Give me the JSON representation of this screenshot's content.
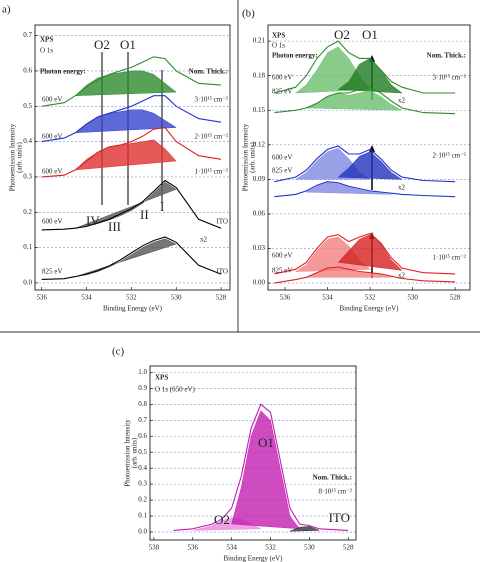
{
  "chart_data": [
    {
      "type": "line",
      "panel": "a)",
      "xlabel": "Binding Energy (eV)",
      "ylabel": [
        "Photoemission Intensity",
        "(arb. units)"
      ],
      "xlim": [
        536.3,
        527.6
      ],
      "xticks": [
        536,
        534,
        532,
        530,
        528
      ],
      "ylim": [
        -0.02,
        0.73
      ],
      "yticks": [
        {
          "value": 0,
          "label": "0.0"
        },
        0.1,
        0.2,
        0.3,
        0.4,
        0.5,
        0.6,
        0.7
      ],
      "grid": true,
      "x": [
        536,
        535,
        534.5,
        534,
        533.5,
        533,
        532.5,
        532,
        531.5,
        531,
        530.5,
        530,
        529,
        528
      ],
      "series": [
        {
          "kind": "area",
          "color": "#2e8b2e",
          "values": [
            null,
            null,
            0.53,
            0.56,
            0.58,
            0.59,
            0.595,
            0.6,
            0.6,
            0.59,
            0.565,
            0.54,
            null,
            null
          ]
        },
        {
          "kind": "line",
          "color": "#2e8b2e",
          "values": [
            0.5,
            0.51,
            0.53,
            0.555,
            0.575,
            0.59,
            0.6,
            0.61,
            0.625,
            0.64,
            0.635,
            0.6,
            0.565,
            0.56
          ]
        },
        {
          "kind": "area",
          "color": "#3344cc",
          "values": [
            null,
            null,
            0.425,
            0.45,
            0.47,
            0.48,
            0.485,
            0.49,
            0.49,
            0.48,
            0.46,
            0.44,
            null,
            null
          ]
        },
        {
          "kind": "line",
          "color": "#2233cc",
          "values": [
            0.4,
            0.41,
            0.425,
            0.45,
            0.47,
            0.48,
            0.49,
            0.5,
            0.515,
            0.53,
            0.53,
            0.5,
            0.465,
            0.455
          ]
        },
        {
          "kind": "area",
          "color": "#e03030",
          "values": [
            null,
            null,
            0.32,
            0.35,
            0.37,
            0.385,
            0.39,
            0.395,
            0.4,
            0.405,
            0.38,
            0.345,
            null,
            null
          ]
        },
        {
          "kind": "line",
          "color": "#e02020",
          "values": [
            0.3,
            0.305,
            0.32,
            0.345,
            0.37,
            0.385,
            0.39,
            0.4,
            0.415,
            0.435,
            0.44,
            0.4,
            0.36,
            0.35
          ]
        },
        {
          "kind": "area",
          "color": "#555555",
          "values": [
            null,
            null,
            0.155,
            0.16,
            0.168,
            0.178,
            0.19,
            0.205,
            0.225,
            0.255,
            0.285,
            0.265,
            null,
            null
          ]
        },
        {
          "kind": "line",
          "color": "#000000",
          "values": [
            0.15,
            0.152,
            0.155,
            0.16,
            0.17,
            0.18,
            0.195,
            0.21,
            0.23,
            0.26,
            0.29,
            0.27,
            0.18,
            0.155
          ]
        },
        {
          "kind": "area",
          "color": "#555555",
          "values": [
            null,
            null,
            0.018,
            0.023,
            0.032,
            0.045,
            0.06,
            0.08,
            0.1,
            0.115,
            0.125,
            0.11,
            null,
            null
          ]
        },
        {
          "kind": "line",
          "color": "#000000",
          "values": [
            0.01,
            0.012,
            0.018,
            0.025,
            0.035,
            0.048,
            0.065,
            0.085,
            0.105,
            0.12,
            0.13,
            0.115,
            0.05,
            0.025
          ]
        }
      ],
      "annotations": [
        "XPS",
        "O 1s",
        "O2",
        "O1",
        "Photon energy:",
        "Nom. Thick.:",
        "600 eV",
        "3·10¹⁵ cm⁻²",
        "600 eV",
        "2·10¹⁵ cm⁻²",
        "600 eV",
        "1·10¹⁵ cm⁻²",
        "600 eV",
        "ITO",
        "IV",
        "III",
        "II",
        "I",
        "x2",
        "825 eV",
        "ITO"
      ]
    },
    {
      "type": "line",
      "panel": "(b)",
      "xlabel": "Binding Energy (eV)",
      "ylabel": [
        "Photoemission Intensity",
        "(arb. units)"
      ],
      "xlim": [
        536.8,
        527.3
      ],
      "xticks": [
        536,
        534,
        532,
        530,
        528
      ],
      "ylim": [
        -0.006,
        0.224
      ],
      "yticks": [
        {
          "value": 0,
          "label": "0.00"
        },
        0.03,
        0.06,
        0.09,
        0.12,
        0.15,
        0.18,
        0.21
      ],
      "grid": true,
      "x": [
        536.5,
        535.5,
        535,
        534.5,
        534,
        533.5,
        533,
        532.5,
        532,
        531.5,
        531,
        530.5,
        529.5,
        528
      ],
      "series": [
        {
          "kind": "area",
          "color": "#6cbf6c",
          "values": [
            null,
            0.165,
            0.172,
            0.185,
            0.2,
            0.205,
            0.195,
            0.18,
            0.168,
            null,
            null,
            null,
            null,
            null
          ]
        },
        {
          "kind": "area",
          "color": "#1f7a1f",
          "values": [
            null,
            null,
            null,
            null,
            null,
            0.168,
            0.175,
            0.19,
            0.195,
            0.185,
            0.172,
            0.165,
            null,
            null
          ]
        },
        {
          "kind": "line",
          "color": "#2e8b2e",
          "values": [
            0.165,
            0.17,
            0.18,
            0.195,
            0.205,
            0.21,
            0.2,
            0.195,
            0.195,
            0.185,
            0.175,
            0.17,
            0.165,
            0.165
          ]
        },
        {
          "kind": "area",
          "color": "#6cbf6c",
          "values": [
            null,
            null,
            0.152,
            0.156,
            0.162,
            0.165,
            0.163,
            0.165,
            0.167,
            0.162,
            0.155,
            0.15,
            null,
            null
          ]
        },
        {
          "kind": "line",
          "color": "#2e8b2e",
          "values": [
            0.148,
            0.15,
            0.152,
            0.156,
            0.162,
            0.165,
            0.165,
            0.168,
            0.17,
            0.165,
            0.158,
            0.152,
            0.148,
            0.147
          ]
        },
        {
          "kind": "area",
          "color": "#8088e0",
          "values": [
            null,
            0.09,
            0.096,
            0.106,
            0.114,
            0.117,
            0.108,
            0.096,
            0.09,
            null,
            null,
            null,
            null,
            null
          ]
        },
        {
          "kind": "area",
          "color": "#2233bb",
          "values": [
            null,
            null,
            null,
            null,
            null,
            0.092,
            0.1,
            0.11,
            0.114,
            0.106,
            0.096,
            0.09,
            null,
            null
          ]
        },
        {
          "kind": "line",
          "color": "#2233cc",
          "values": [
            0.088,
            0.092,
            0.098,
            0.108,
            0.116,
            0.119,
            0.112,
            0.112,
            0.116,
            0.108,
            0.098,
            0.092,
            0.089,
            0.088
          ]
        },
        {
          "kind": "area",
          "color": "#8088e0",
          "values": [
            null,
            null,
            0.079,
            0.084,
            0.087,
            0.086,
            0.083,
            0.081,
            0.079,
            0.078,
            0.077,
            null,
            null,
            null
          ]
        },
        {
          "kind": "line",
          "color": "#2233cc",
          "values": [
            0.075,
            0.077,
            0.08,
            0.085,
            0.088,
            0.087,
            0.084,
            0.082,
            0.08,
            0.079,
            0.078,
            0.077,
            0.076,
            0.075
          ]
        },
        {
          "kind": "area",
          "color": "#f08080",
          "values": [
            null,
            0.01,
            0.016,
            0.028,
            0.038,
            0.04,
            0.032,
            0.02,
            0.012,
            null,
            null,
            null,
            null,
            null
          ]
        },
        {
          "kind": "area",
          "color": "#d42020",
          "values": [
            null,
            null,
            null,
            null,
            null,
            0.018,
            0.028,
            0.038,
            0.042,
            0.034,
            0.02,
            0.011,
            null,
            null
          ]
        },
        {
          "kind": "line",
          "color": "#e02020",
          "values": [
            0.008,
            0.012,
            0.018,
            0.03,
            0.04,
            0.042,
            0.036,
            0.04,
            0.043,
            0.035,
            0.022,
            0.013,
            0.009,
            0.008
          ]
        },
        {
          "kind": "area",
          "color": "#f08080",
          "values": [
            null,
            null,
            0.005,
            0.009,
            0.012,
            0.013,
            0.011,
            0.009,
            0.008,
            0.007,
            0.005,
            null,
            null,
            null
          ]
        },
        {
          "kind": "line",
          "color": "#e02020",
          "values": [
            0,
            0.003,
            0.005,
            0.009,
            0.013,
            0.014,
            0.012,
            0.01,
            0.009,
            0.008,
            0.006,
            0.004,
            0.002,
            0.001
          ]
        }
      ],
      "annotations": [
        "XPS",
        "O 1s",
        "Photon energy:",
        "O2",
        "O1",
        "Nom. Thick.:",
        "600 eV",
        "3·10¹⁵ cm⁻²",
        "825 eV",
        "x2",
        "600 eV",
        "2·10¹⁵ cm⁻²",
        "825 eV",
        "x2",
        "600 eV",
        "1·10¹⁵ cm⁻²",
        "825 eV",
        "x2"
      ]
    },
    {
      "type": "line",
      "panel": "(c)",
      "xlabel": "Binding Energy (eV)",
      "ylabel": [
        "Photoemission Intensity",
        "(arb. units)"
      ],
      "xlim": [
        538.2,
        527.6
      ],
      "xticks": [
        538,
        536,
        534,
        532,
        530,
        528
      ],
      "ylim": [
        -0.05,
        1.04
      ],
      "yticks": [
        {
          "value": 0,
          "label": "0.0"
        },
        0.1,
        0.2,
        0.3,
        0.4,
        0.5,
        0.6,
        0.7,
        0.8,
        0.9,
        {
          "value": 1,
          "label": "1.0"
        }
      ],
      "grid": true,
      "x": [
        537,
        536,
        535,
        534.5,
        534,
        533.5,
        533,
        532.5,
        532,
        531.5,
        531,
        530.5,
        530,
        529.5,
        528
      ],
      "series": [
        {
          "kind": "area",
          "color": "#e98ad8",
          "values": [
            null,
            0.01,
            0.04,
            0.07,
            0.09,
            0.08,
            0.05,
            0.02,
            null,
            null,
            null,
            null,
            null,
            null,
            null
          ]
        },
        {
          "kind": "area",
          "color": "#c21fb0",
          "values": [
            null,
            null,
            null,
            null,
            0.05,
            0.28,
            0.6,
            0.76,
            0.7,
            0.4,
            0.1,
            0.02,
            null,
            null,
            null
          ]
        },
        {
          "kind": "area",
          "color": "#333333",
          "values": [
            null,
            null,
            null,
            null,
            null,
            null,
            null,
            null,
            null,
            null,
            0.005,
            0.03,
            0.035,
            0.01,
            null
          ]
        },
        {
          "kind": "line",
          "color": "#c21fb0",
          "values": [
            0.01,
            0.02,
            0.05,
            0.08,
            0.15,
            0.35,
            0.65,
            0.8,
            0.75,
            0.45,
            0.15,
            0.05,
            0.04,
            0.02,
            0.01
          ]
        }
      ],
      "annotations": [
        "XPS",
        "O 1s (650 eV)",
        "O1",
        "Nom. Thick.:",
        "8·10¹⁵ cm⁻²",
        "O2",
        "ITO"
      ]
    }
  ]
}
